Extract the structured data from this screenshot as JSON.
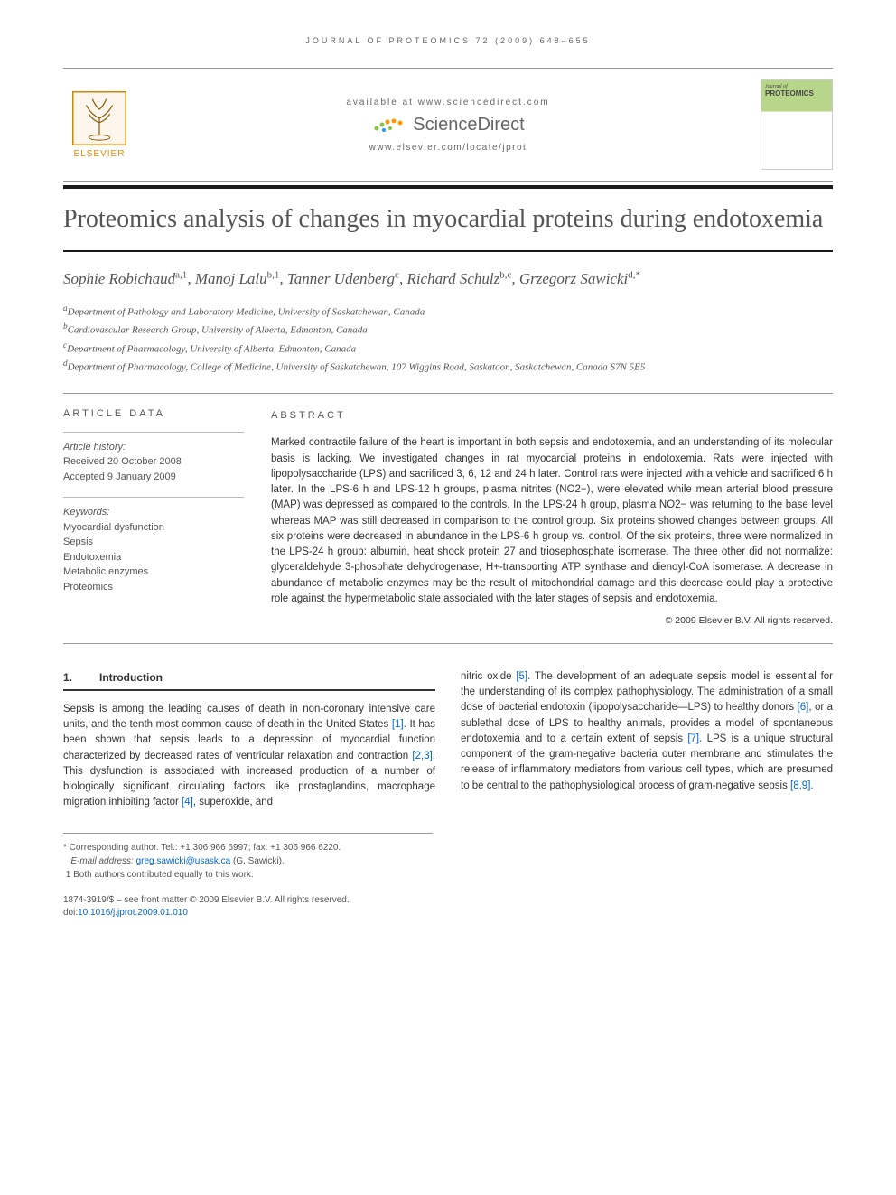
{
  "running_header": "JOURNAL OF PROTEOMICS 72 (2009) 648–655",
  "masthead": {
    "elsevier_label": "ELSEVIER",
    "available_text": "available at www.sciencedirect.com",
    "sd_brand": "ScienceDirect",
    "journal_link": "www.elsevier.com/locate/jprot",
    "cover_title": "PROTEOMICS",
    "cover_subtitle": "Journal of"
  },
  "article": {
    "title": "Proteomics analysis of changes in myocardial proteins during endotoxemia",
    "authors_html": "Sophie Robichaud<sup>a,1</sup>, Manoj Lalu<sup>b,1</sup>, Tanner Udenberg<sup>c</sup>, Richard Schulz<sup>b,c</sup>, Grzegorz Sawicki<sup>d,*</sup>",
    "affiliations": [
      "aDepartment of Pathology and Laboratory Medicine, University of Saskatchewan, Canada",
      "bCardiovascular Research Group, University of Alberta, Edmonton, Canada",
      "cDepartment of Pharmacology, University of Alberta, Edmonton, Canada",
      "dDepartment of Pharmacology, College of Medicine, University of Saskatchewan, 107 Wiggins Road, Saskatoon, Saskatchewan, Canada S7N 5E5"
    ]
  },
  "article_data": {
    "heading": "ARTICLE DATA",
    "history_label": "Article history:",
    "received": "Received 20 October 2008",
    "accepted": "Accepted 9 January 2009",
    "keywords_label": "Keywords:",
    "keywords": [
      "Myocardial dysfunction",
      "Sepsis",
      "Endotoxemia",
      "Metabolic enzymes",
      "Proteomics"
    ]
  },
  "abstract": {
    "heading": "ABSTRACT",
    "text": "Marked contractile failure of the heart is important in both sepsis and endotoxemia, and an understanding of its molecular basis is lacking. We investigated changes in rat myocardial proteins in endotoxemia. Rats were injected with lipopolysaccharide (LPS) and sacrificed 3, 6, 12 and 24 h later. Control rats were injected with a vehicle and sacrificed 6 h later. In the LPS-6 h and LPS-12 h groups, plasma nitrites (NO2−), were elevated while mean arterial blood pressure (MAP) was depressed as compared to the controls. In the LPS-24 h group, plasma NO2− was returning to the base level whereas MAP was still decreased in comparison to the control group. Six proteins showed changes between groups. All six proteins were decreased in abundance in the LPS-6 h group vs. control. Of the six proteins, three were normalized in the LPS-24 h group: albumin, heat shock protein 27 and triosephosphate isomerase. The three other did not normalize: glyceraldehyde 3-phosphate dehydrogenase, H+-transporting ATP synthase and dienoyl-CoA isomerase. A decrease in abundance of metabolic enzymes may be the result of mitochondrial damage and this decrease could play a protective role against the hypermetabolic state associated with the later stages of sepsis and endotoxemia.",
    "copyright": "© 2009 Elsevier B.V. All rights reserved."
  },
  "introduction": {
    "number": "1.",
    "title": "Introduction",
    "col1": "Sepsis is among the leading causes of death in non-coronary intensive care units, and the tenth most common cause of death in the United States [1]. It has been shown that sepsis leads to a depression of myocardial function characterized by decreased rates of ventricular relaxation and contraction [2,3]. This dysfunction is associated with increased production of a number of biologically significant circulating factors like prostaglandins, macrophage migration inhibiting factor [4], superoxide, and",
    "col2": "nitric oxide [5]. The development of an adequate sepsis model is essential for the understanding of its complex pathophysiology. The administration of a small dose of bacterial endotoxin (lipopolysaccharide—LPS) to healthy donors [6], or a sublethal dose of LPS to healthy animals, provides a model of spontaneous endotoxemia and to a certain extent of sepsis [7]. LPS is a unique structural component of the gram-negative bacteria outer membrane and stimulates the release of inflammatory mediators from various cell types, which are presumed to be central to the pathophysiological process of gram-negative sepsis [8,9].",
    "refs_col1": [
      "[1]",
      "[2,3]",
      "[4]"
    ],
    "refs_col2": [
      "[5]",
      "[6]",
      "[7]",
      "[8,9]"
    ]
  },
  "footnotes": {
    "corresponding": "* Corresponding author. Tel.: +1 306 966 6997; fax: +1 306 966 6220.",
    "email_label": "E-mail address:",
    "email": "greg.sawicki@usask.ca",
    "email_name": "(G. Sawicki).",
    "equal": "1 Both authors contributed equally to this work."
  },
  "bottom": {
    "line1": "1874-3919/$ – see front matter © 2009 Elsevier B.V. All rights reserved.",
    "doi_label": "doi:",
    "doi": "10.1016/j.jprot.2009.01.010"
  },
  "colors": {
    "elsevier_orange": "#ee8800",
    "link_blue": "#0066cc",
    "text_gray": "#555555",
    "rule_gray": "#999999",
    "cover_green": "#b8d68a",
    "sd_green": "#8bc34a",
    "sd_orange": "#ff9800",
    "sd_blue": "#2196f3"
  }
}
